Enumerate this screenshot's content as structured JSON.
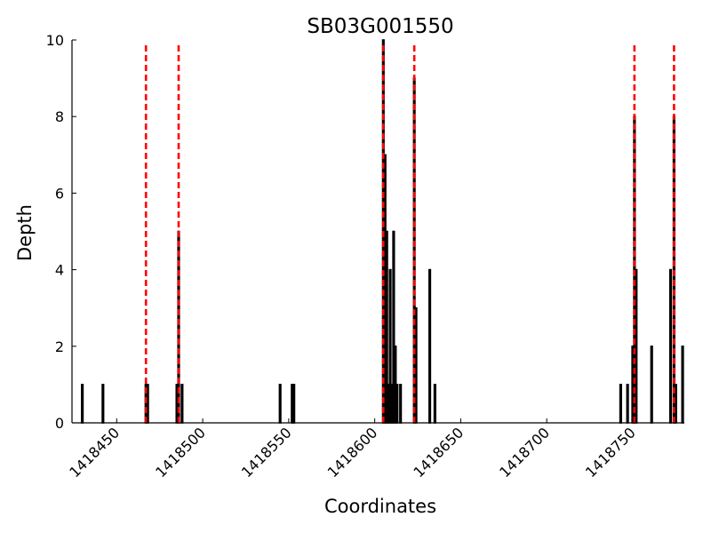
{
  "chart_data": {
    "type": "bar",
    "title": "SB03G001550",
    "xlabel": "Coordinates",
    "ylabel": "Depth",
    "xlim": [
      1418424,
      1418780
    ],
    "ylim": [
      0,
      10
    ],
    "x_ticks": [
      1418450,
      1418500,
      1418550,
      1418600,
      1418650,
      1418700,
      1418750
    ],
    "y_ticks": [
      0,
      2,
      4,
      6,
      8,
      10
    ],
    "x_tick_labels": [
      "1418450",
      "1418500",
      "1418550",
      "1418600",
      "1418650",
      "1418700",
      "1418750"
    ],
    "y_tick_labels": [
      "0",
      "2",
      "4",
      "6",
      "8",
      "10"
    ],
    "bar_color": "#000000",
    "marker_color": "#ff0000",
    "bars": [
      {
        "x": 1418430,
        "depth": 1
      },
      {
        "x": 1418442,
        "depth": 1
      },
      {
        "x": 1418467,
        "depth": 1
      },
      {
        "x": 1418468,
        "depth": 1
      },
      {
        "x": 1418485,
        "depth": 1
      },
      {
        "x": 1418486,
        "depth": 5
      },
      {
        "x": 1418488,
        "depth": 1
      },
      {
        "x": 1418545,
        "depth": 1
      },
      {
        "x": 1418552,
        "depth": 1
      },
      {
        "x": 1418553,
        "depth": 1
      },
      {
        "x": 1418605,
        "depth": 10
      },
      {
        "x": 1418606,
        "depth": 7
      },
      {
        "x": 1418607,
        "depth": 5
      },
      {
        "x": 1418608,
        "depth": 1
      },
      {
        "x": 1418609,
        "depth": 4
      },
      {
        "x": 1418610,
        "depth": 1
      },
      {
        "x": 1418611,
        "depth": 5
      },
      {
        "x": 1418612,
        "depth": 2
      },
      {
        "x": 1418613,
        "depth": 1
      },
      {
        "x": 1418615,
        "depth": 1
      },
      {
        "x": 1418623,
        "depth": 9
      },
      {
        "x": 1418624,
        "depth": 3
      },
      {
        "x": 1418632,
        "depth": 4
      },
      {
        "x": 1418635,
        "depth": 1
      },
      {
        "x": 1418743,
        "depth": 1
      },
      {
        "x": 1418747,
        "depth": 1
      },
      {
        "x": 1418750,
        "depth": 2
      },
      {
        "x": 1418751,
        "depth": 8
      },
      {
        "x": 1418752,
        "depth": 4
      },
      {
        "x": 1418761,
        "depth": 2
      },
      {
        "x": 1418772,
        "depth": 4
      },
      {
        "x": 1418774,
        "depth": 8
      },
      {
        "x": 1418775,
        "depth": 1
      },
      {
        "x": 1418779,
        "depth": 2
      }
    ],
    "markers": [
      1418467,
      1418486,
      1418605,
      1418623,
      1418751,
      1418774
    ]
  }
}
